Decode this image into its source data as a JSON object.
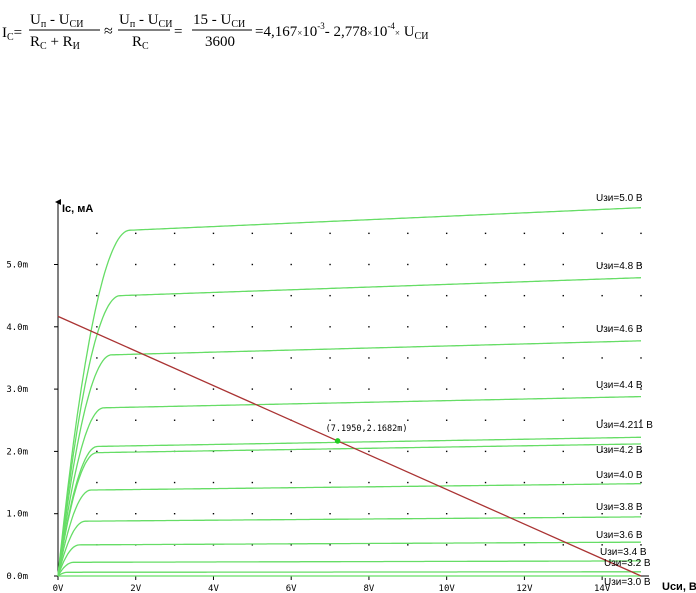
{
  "formula": {
    "lhs": "I",
    "lhs_sub": "C",
    "eq1": "=",
    "frac1_num_a": "U",
    "frac1_num_a_sub": "п",
    "frac1_num_b": " - U",
    "frac1_num_b_sub": "СИ",
    "frac1_den_a": "R",
    "frac1_den_a_sub": "С",
    "frac1_den_b": " + R",
    "frac1_den_b_sub": "И",
    "approx": "≈",
    "frac2_num_a": "U",
    "frac2_num_a_sub": "п",
    "frac2_num_b": " - U",
    "frac2_num_b_sub": "СИ",
    "frac2_den": "R",
    "frac2_den_sub": "С",
    "eq2": "=",
    "frac3_num": "15 - U",
    "frac3_num_sub": "СИ",
    "frac3_den": "3600",
    "rhs_a": "=4,167",
    "rhs_times1": "×",
    "rhs_b": "10",
    "rhs_b_sup": "-3",
    "rhs_c": "- 2,778",
    "rhs_times2": "×",
    "rhs_d": "10",
    "rhs_d_sup": "-4",
    "rhs_times3": "×",
    "rhs_e": " U",
    "rhs_e_sub": "СИ"
  },
  "chart_data": {
    "type": "line",
    "title": "",
    "xlabel": "Uси, В",
    "ylabel": "Ic, мА",
    "xlim": [
      0,
      15.0
    ],
    "ylim": [
      0,
      5.9
    ],
    "x_ticks": [
      0,
      2,
      4,
      6,
      8,
      10,
      12,
      14
    ],
    "x_tick_labels": [
      "0V",
      "2V",
      "4V",
      "6V",
      "8V",
      "10V",
      "12V",
      "14V"
    ],
    "y_ticks": [
      0,
      1,
      2,
      3,
      4,
      5
    ],
    "y_tick_labels": [
      "0.0m",
      "1.0m",
      "2.0m",
      "3.0m",
      "4.0m",
      "5.0m"
    ],
    "grid": "dotted",
    "series_color": "#66dd66",
    "load_line_color": "#aa3333",
    "marker_color": "#22cc22",
    "series": [
      {
        "name": "Uзи=5.0 В",
        "vgs": 5.0,
        "sat_current": 5.55,
        "slope": 0.0275,
        "knee": 1.85
      },
      {
        "name": "Uзи=4.8 В",
        "vgs": 4.8,
        "sat_current": 4.5,
        "slope": 0.0215,
        "knee": 1.6
      },
      {
        "name": "Uзи=4.6 В",
        "vgs": 4.6,
        "sat_current": 3.55,
        "slope": 0.0165,
        "knee": 1.38
      },
      {
        "name": "Uзи=4.4 В",
        "vgs": 4.4,
        "sat_current": 2.7,
        "slope": 0.013,
        "knee": 1.18
      },
      {
        "name": "Uзи=4.211 В",
        "vgs": 4.211,
        "sat_current": 2.08,
        "slope": 0.0105,
        "knee": 1.02
      },
      {
        "name": "Uзи=4.2 В",
        "vgs": 4.2,
        "sat_current": 1.98,
        "slope": 0.01,
        "knee": 1.0
      },
      {
        "name": "Uзи=4.0 В",
        "vgs": 4.0,
        "sat_current": 1.38,
        "slope": 0.0072,
        "knee": 0.85
      },
      {
        "name": "Uзи=3.8 В",
        "vgs": 3.8,
        "sat_current": 0.88,
        "slope": 0.0048,
        "knee": 0.7
      },
      {
        "name": "Uзи=3.6 В",
        "vgs": 3.6,
        "sat_current": 0.5,
        "slope": 0.003,
        "knee": 0.55
      },
      {
        "name": "Uзи=3.4 В",
        "vgs": 3.4,
        "sat_current": 0.22,
        "slope": 0.0015,
        "knee": 0.4
      },
      {
        "name": "Uзи=3.2 В",
        "vgs": 3.2,
        "sat_current": 0.06,
        "slope": 0.0005,
        "knee": 0.25
      },
      {
        "name": "Uзи=3.0 В",
        "vgs": 3.0,
        "sat_current": 0.0,
        "slope": 0.0,
        "knee": 0.2
      }
    ],
    "load_line": {
      "x": [
        0,
        15
      ],
      "y": [
        4.167,
        0.0
      ]
    },
    "annotations": [
      {
        "text": "(7.1950,2.1682m)",
        "x": 7.195,
        "y": 2.1682
      }
    ]
  }
}
